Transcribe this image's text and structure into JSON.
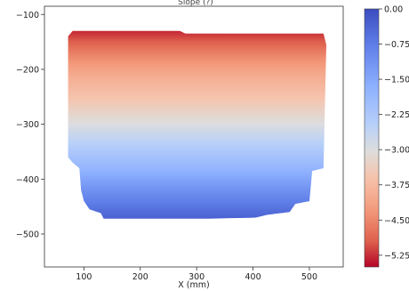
{
  "chart_data": {
    "type": "heatmap",
    "title": "Slope (?)",
    "xlabel": "X (mm)",
    "ylabel": "",
    "xlim": [
      30,
      560
    ],
    "ylim": [
      -560,
      -85
    ],
    "x_ticks": [
      100,
      200,
      300,
      400,
      500
    ],
    "y_ticks": [
      -100,
      -200,
      -300,
      -400,
      -500
    ],
    "colorbar": {
      "colormap": "coolwarm_r",
      "range": [
        -5.5,
        0.0
      ],
      "ticks": [
        0.0,
        -0.75,
        -1.5,
        -2.25,
        -3.0,
        -3.75,
        -4.5,
        -5.25
      ],
      "tick_labels": [
        "0.00",
        "-0.75",
        "-1.50",
        "-2.25",
        "-3.00",
        "-3.75",
        "-4.50",
        "-5.25"
      ]
    },
    "field": {
      "description_points_y": [
        -130,
        -170,
        -210,
        -250,
        -300,
        -340,
        -380,
        -420,
        -460,
        -475
      ],
      "values_at_y": [
        -5.3,
        -4.6,
        -4.0,
        -3.6,
        -3.0,
        -2.4,
        -1.8,
        -1.1,
        -0.5,
        -0.3
      ]
    },
    "region_outline": [
      [
        72,
        -140
      ],
      [
        80,
        -130
      ],
      [
        270,
        -130
      ],
      [
        280,
        -135
      ],
      [
        525,
        -135
      ],
      [
        530,
        -155
      ],
      [
        525,
        -380
      ],
      [
        505,
        -385
      ],
      [
        500,
        -440
      ],
      [
        475,
        -445
      ],
      [
        465,
        -460
      ],
      [
        425,
        -465
      ],
      [
        405,
        -470
      ],
      [
        320,
        -472
      ],
      [
        135,
        -472
      ],
      [
        130,
        -462
      ],
      [
        110,
        -455
      ],
      [
        100,
        -440
      ],
      [
        95,
        -420
      ],
      [
        92,
        -380
      ],
      [
        80,
        -370
      ],
      [
        72,
        -360
      ],
      [
        72,
        -150
      ]
    ]
  }
}
